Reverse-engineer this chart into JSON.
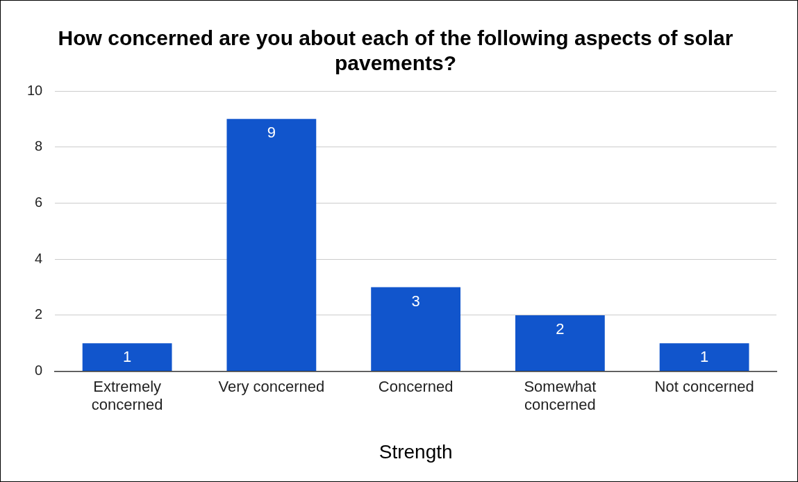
{
  "chart_data": {
    "type": "bar",
    "title": "How concerned are you about each of the following aspects of solar pavements?",
    "xlabel": "Strength",
    "categories": [
      "Extremely concerned",
      "Very concerned",
      "Concerned",
      "Somewhat concerned",
      "Not concerned"
    ],
    "values": [
      1,
      9,
      3,
      2,
      1
    ],
    "color": "#1155cc",
    "ylim": [
      0,
      10
    ],
    "yticks": [
      0,
      2,
      4,
      6,
      8,
      10
    ],
    "grid": "y",
    "data_labels": true,
    "legend": false
  }
}
